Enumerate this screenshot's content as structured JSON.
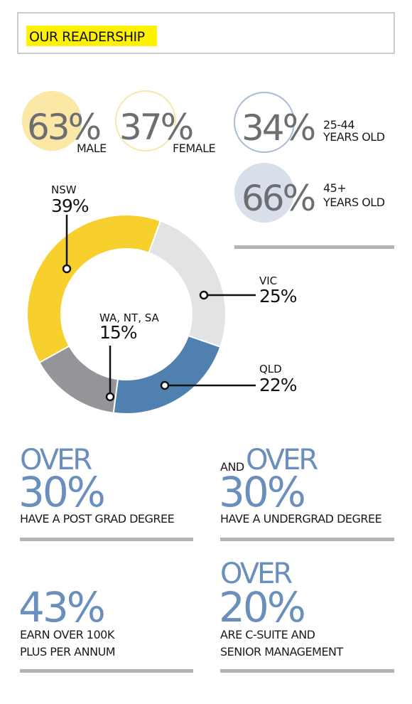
{
  "header": {
    "title": "OUR READERSHIP"
  },
  "gender": [
    {
      "value": "63%",
      "label": "MALE"
    },
    {
      "value": "37%",
      "label": "FEMALE"
    }
  ],
  "age": [
    {
      "value": "34%",
      "label_lines": [
        "25-44",
        "YEARS OLD"
      ]
    },
    {
      "value": "66%",
      "label_lines": [
        "45+",
        "YEARS OLD"
      ]
    }
  ],
  "chart_data": {
    "type": "donut",
    "categories": [
      "NSW",
      "VIC",
      "QLD",
      "WA, NT, SA"
    ],
    "values": [
      39,
      25,
      22,
      15
    ],
    "value_labels": [
      "39%",
      "25%",
      "22%",
      "15%"
    ],
    "colors": [
      "#f7d02d",
      "#e2e3e5",
      "#4f80b0",
      "#939598"
    ]
  },
  "stats": [
    {
      "prefix": "OVER",
      "value": "30%",
      "lines": [
        "HAVE A POST GRAD DEGREE"
      ]
    },
    {
      "lead": "AND",
      "prefix": "OVER",
      "value": "30%",
      "lines": [
        "HAVE A UNDERGRAD DEGREE"
      ]
    },
    {
      "value": "43%",
      "lines": [
        "EARN OVER 100K",
        "PLUS PER ANNUM"
      ]
    },
    {
      "prefix": "OVER",
      "value": "20%",
      "lines": [
        "ARE C-SUITE AND",
        "SENIOR MANAGEMENT"
      ]
    }
  ]
}
